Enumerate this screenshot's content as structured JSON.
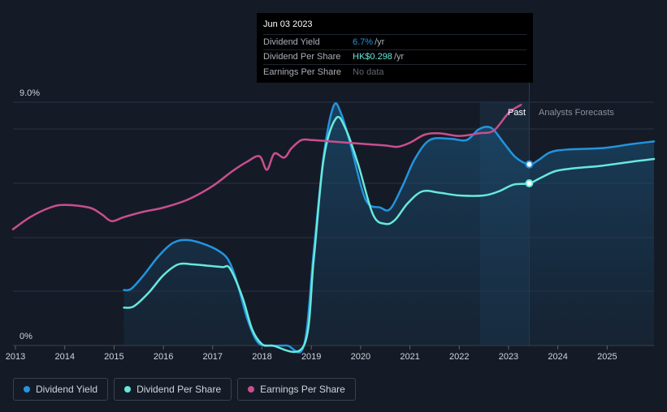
{
  "tooltip": {
    "date": "Jun 03 2023",
    "rows": [
      {
        "name": "Dividend Yield",
        "value": "6.7%",
        "unit": "/yr"
      },
      {
        "name": "Dividend Per Share",
        "value": "HK$0.298",
        "unit": "/yr"
      },
      {
        "name": "Earnings Per Share",
        "value": "No data",
        "unit": ""
      }
    ]
  },
  "labels": {
    "past": "Past",
    "forecast": "Analysts Forecasts",
    "y_top": "9.0%",
    "y_bottom": "0%"
  },
  "legend": [
    {
      "label": "Dividend Yield",
      "color": "#2394df"
    },
    {
      "label": "Dividend Per Share",
      "color": "#67e8dc"
    },
    {
      "label": "Earnings Per Share",
      "color": "#c84f8f"
    }
  ],
  "chart_data": {
    "type": "line",
    "x_ticks": [
      "2013",
      "2014",
      "2015",
      "2016",
      "2017",
      "2018",
      "2019",
      "2020",
      "2021",
      "2022",
      "2023",
      "2024",
      "2025"
    ],
    "xlim": [
      2012.95,
      2025.95
    ],
    "ylim": [
      0,
      9.0
    ],
    "ylabel_ticks": [
      "0%",
      "9.0%"
    ],
    "past_until": 2023.42,
    "forecast_band_start": 2022.42,
    "highlight_x": 2023.42,
    "series": [
      {
        "name": "Dividend Yield",
        "color": "#2394df",
        "filled": true,
        "points": [
          [
            2015.2,
            2.05
          ],
          [
            2015.35,
            2.1
          ],
          [
            2015.6,
            2.6
          ],
          [
            2015.9,
            3.3
          ],
          [
            2016.2,
            3.8
          ],
          [
            2016.5,
            3.9
          ],
          [
            2016.9,
            3.7
          ],
          [
            2017.2,
            3.4
          ],
          [
            2017.35,
            3.05
          ],
          [
            2017.5,
            2.3
          ],
          [
            2017.7,
            1.0
          ],
          [
            2017.9,
            0.15
          ],
          [
            2018.1,
            0
          ],
          [
            2018.5,
            0
          ],
          [
            2018.85,
            0
          ],
          [
            2019.05,
            3.5
          ],
          [
            2019.25,
            7.0
          ],
          [
            2019.45,
            8.85
          ],
          [
            2019.6,
            8.6
          ],
          [
            2019.8,
            7.4
          ],
          [
            2020.1,
            5.4
          ],
          [
            2020.4,
            5.1
          ],
          [
            2020.6,
            5.05
          ],
          [
            2020.85,
            5.9
          ],
          [
            2021.1,
            6.9
          ],
          [
            2021.4,
            7.6
          ],
          [
            2021.8,
            7.65
          ],
          [
            2022.15,
            7.6
          ],
          [
            2022.4,
            8.0
          ],
          [
            2022.65,
            8.05
          ],
          [
            2022.9,
            7.5
          ],
          [
            2023.15,
            6.95
          ],
          [
            2023.42,
            6.7
          ],
          [
            2023.6,
            6.85
          ],
          [
            2023.85,
            7.15
          ],
          [
            2024.2,
            7.25
          ],
          [
            2024.9,
            7.3
          ],
          [
            2025.5,
            7.45
          ],
          [
            2025.95,
            7.55
          ]
        ]
      },
      {
        "name": "Dividend Per Share",
        "color": "#67e8dc",
        "filled": false,
        "points": [
          [
            2015.2,
            1.4
          ],
          [
            2015.4,
            1.45
          ],
          [
            2015.7,
            1.95
          ],
          [
            2016.0,
            2.6
          ],
          [
            2016.3,
            3.0
          ],
          [
            2016.6,
            3.0
          ],
          [
            2016.9,
            2.95
          ],
          [
            2017.2,
            2.9
          ],
          [
            2017.35,
            2.85
          ],
          [
            2017.6,
            1.8
          ],
          [
            2017.8,
            0.6
          ],
          [
            2018.0,
            0.05
          ],
          [
            2018.2,
            0
          ],
          [
            2018.85,
            0
          ],
          [
            2019.05,
            3.2
          ],
          [
            2019.25,
            6.9
          ],
          [
            2019.5,
            8.4
          ],
          [
            2019.7,
            8.0
          ],
          [
            2019.95,
            6.7
          ],
          [
            2020.25,
            4.85
          ],
          [
            2020.5,
            4.5
          ],
          [
            2020.7,
            4.65
          ],
          [
            2020.95,
            5.25
          ],
          [
            2021.25,
            5.7
          ],
          [
            2021.6,
            5.65
          ],
          [
            2022.0,
            5.55
          ],
          [
            2022.5,
            5.55
          ],
          [
            2022.8,
            5.7
          ],
          [
            2023.1,
            5.95
          ],
          [
            2023.42,
            6.0
          ],
          [
            2023.65,
            6.2
          ],
          [
            2023.95,
            6.45
          ],
          [
            2024.3,
            6.55
          ],
          [
            2024.9,
            6.65
          ],
          [
            2025.5,
            6.8
          ],
          [
            2025.95,
            6.9
          ]
        ]
      },
      {
        "name": "Earnings Per Share",
        "color": "#c84f8f",
        "filled": false,
        "points": [
          [
            2012.95,
            4.3
          ],
          [
            2013.3,
            4.75
          ],
          [
            2013.7,
            5.1
          ],
          [
            2014.0,
            5.2
          ],
          [
            2014.5,
            5.1
          ],
          [
            2014.75,
            4.85
          ],
          [
            2014.95,
            4.6
          ],
          [
            2015.2,
            4.75
          ],
          [
            2015.6,
            4.95
          ],
          [
            2016.0,
            5.1
          ],
          [
            2016.5,
            5.4
          ],
          [
            2017.0,
            5.9
          ],
          [
            2017.4,
            6.45
          ],
          [
            2017.7,
            6.8
          ],
          [
            2017.95,
            7.0
          ],
          [
            2018.1,
            6.5
          ],
          [
            2018.25,
            7.1
          ],
          [
            2018.45,
            6.95
          ],
          [
            2018.6,
            7.3
          ],
          [
            2018.8,
            7.6
          ],
          [
            2019.0,
            7.6
          ],
          [
            2019.4,
            7.55
          ],
          [
            2019.75,
            7.5
          ],
          [
            2020.1,
            7.45
          ],
          [
            2020.5,
            7.4
          ],
          [
            2020.75,
            7.35
          ],
          [
            2021.0,
            7.5
          ],
          [
            2021.3,
            7.8
          ],
          [
            2021.6,
            7.85
          ],
          [
            2022.0,
            7.75
          ],
          [
            2022.4,
            7.85
          ],
          [
            2022.7,
            7.95
          ],
          [
            2023.0,
            8.6
          ],
          [
            2023.25,
            8.9
          ]
        ]
      }
    ]
  }
}
